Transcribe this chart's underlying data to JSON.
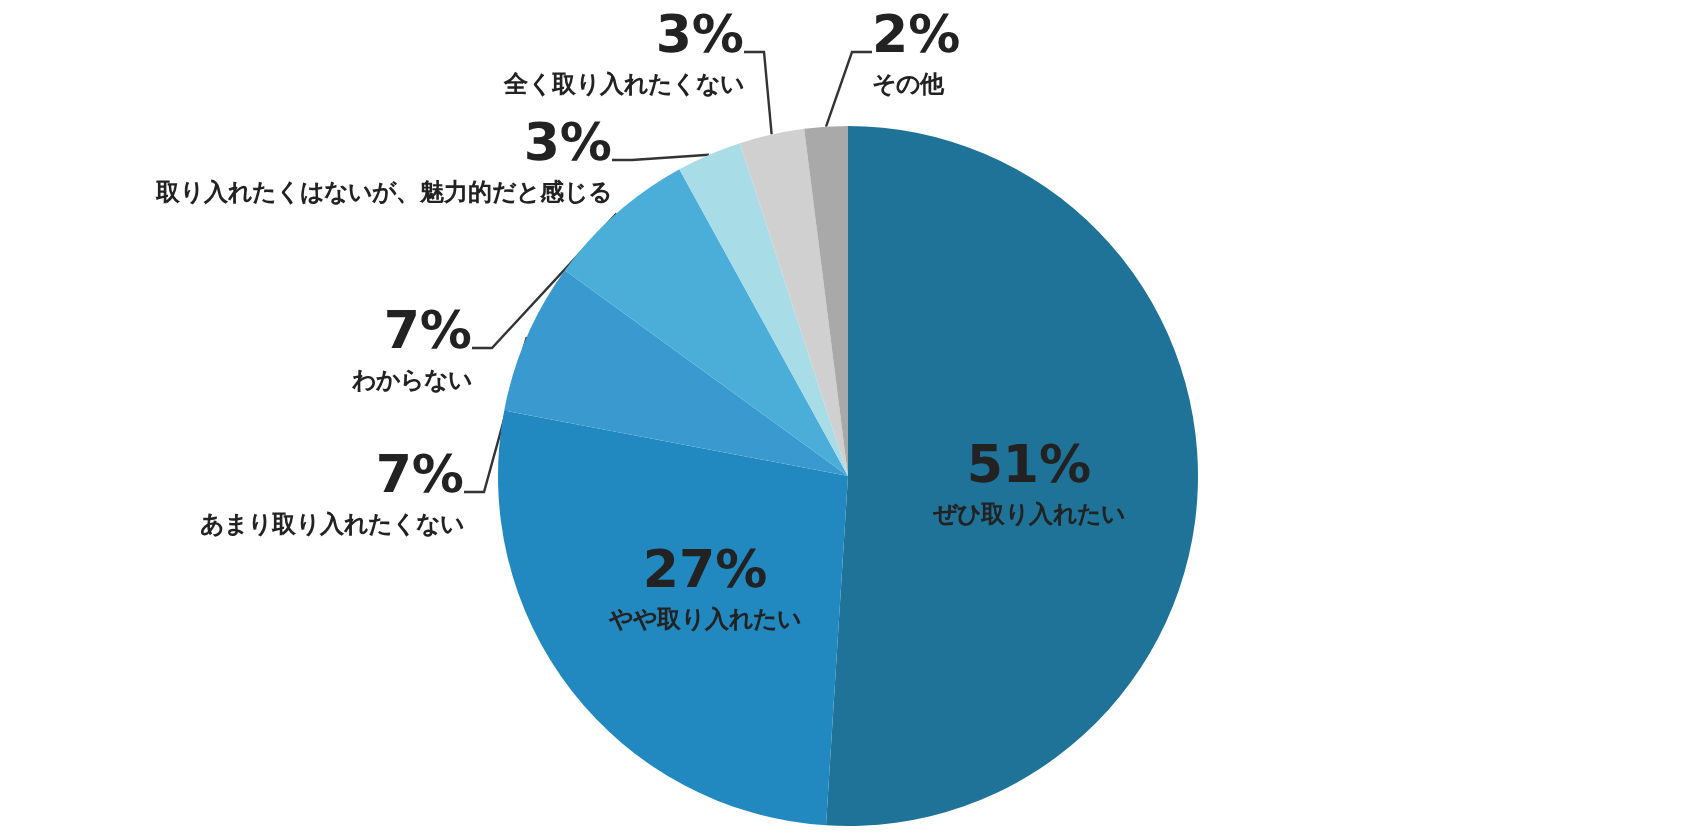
{
  "chart_data": {
    "type": "pie",
    "categories": [
      "ぜひ取り入れたい",
      "やや取り入れたい",
      "あまり取り入れたくない",
      "わからない",
      "取り入れたくはないが、魅力的だと感じる",
      "全く取り入れたくない",
      "その他"
    ],
    "values": [
      51,
      27,
      7,
      7,
      3,
      3,
      2
    ],
    "colors": [
      "#1f7399",
      "#2189bf",
      "#3a9ad0",
      "#4aaed8",
      "#a8dce6",
      "#d0d0d0",
      "#a9a9a9"
    ],
    "value_labels": [
      "51%",
      "27%",
      "7%",
      "7%",
      "3%",
      "3%",
      "2%"
    ],
    "legend": false
  }
}
